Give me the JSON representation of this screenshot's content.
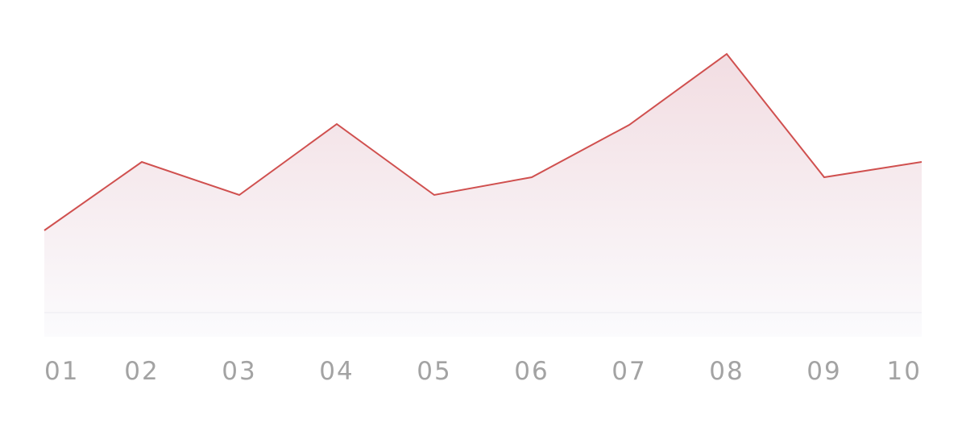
{
  "chart_data": {
    "type": "area",
    "title": "",
    "xlabel": "",
    "ylabel": "",
    "categories": [
      "01",
      "02",
      "03",
      "04",
      "05",
      "06",
      "07",
      "08",
      "09",
      "10"
    ],
    "series": [
      {
        "values": [
          102,
          187,
          146,
          234,
          146,
          168,
          233,
          321,
          168,
          187
        ]
      }
    ],
    "ylim": [
      0,
      340
    ],
    "grid": false,
    "legend": "none",
    "colors": {
      "line": "#d0504f",
      "fill_top": "#f2dde2",
      "fill_bottom": "#fbfbfd",
      "baseline": "#ececf0",
      "tick_text": "#a3a3a3"
    }
  }
}
